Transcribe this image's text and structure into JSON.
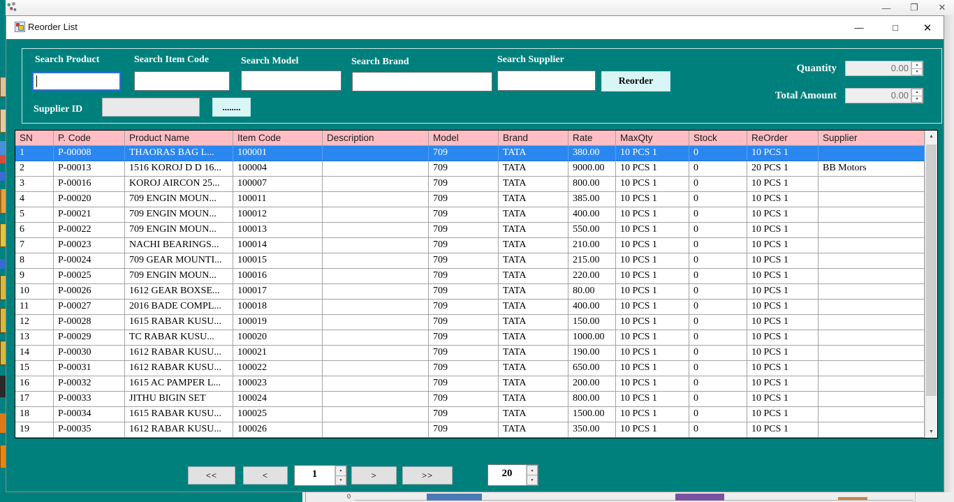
{
  "colors": {
    "background_teal": "#00807d",
    "grid_header_pink": "#ffbec4",
    "selection_blue": "#2b87f0",
    "accent_cyan": "#d9f6f6"
  },
  "icons": {
    "outer_minimize": "—",
    "outer_restore": "❐",
    "outer_close": "✕",
    "window_minimize": "—",
    "window_maximize": "□",
    "window_close": "✕",
    "spin_up": "▲",
    "spin_down": "▼",
    "scroll_up": "▲",
    "scroll_down": "▼"
  },
  "window": {
    "title": "Reorder List"
  },
  "search_panel": {
    "product_label": "Search Product",
    "product_value": "",
    "item_code_label": "Search Item Code",
    "item_code_value": "",
    "model_label": "Search Model",
    "model_value": "",
    "brand_label": "Search Brand",
    "brand_value": "",
    "supplier_label": "Search Supplier",
    "supplier_value": "",
    "reorder_button": "Reorder",
    "supplier_id_label": "Supplier ID",
    "supplier_id_value": "",
    "browse_button": "........",
    "quantity_label": "Quantity",
    "quantity_value": "0.00",
    "total_amount_label": "Total Amount",
    "total_amount_value": "0.00"
  },
  "table": {
    "columns": [
      "SN",
      "P. Code",
      "Product Name",
      "Item Code",
      "Description",
      "Model",
      "Brand",
      "Rate",
      "MaxQty",
      "Stock",
      "ReOrder",
      "Supplier"
    ],
    "selected_row_index": 0,
    "rows": [
      [
        "1",
        "P-00008",
        "THAORAS BAG L...",
        "100001",
        "",
        "709",
        "TATA",
        "380.00",
        "10 PCS 1",
        "0",
        "10 PCS 1",
        ""
      ],
      [
        "2",
        "P-00013",
        "1516 KOROJ D D 16...",
        "100004",
        "",
        "709",
        "TATA",
        "9000.00",
        "10 PCS 1",
        "0",
        "20 PCS 1",
        "BB Motors"
      ],
      [
        "3",
        "P-00016",
        "KOROJ AIRCON 25...",
        "100007",
        "",
        "709",
        "TATA",
        "800.00",
        "10 PCS 1",
        "0",
        "10 PCS 1",
        ""
      ],
      [
        "4",
        "P-00020",
        "709 ENGIN MOUN...",
        "100011",
        "",
        "709",
        "TATA",
        "385.00",
        "10 PCS 1",
        "0",
        "10 PCS 1",
        ""
      ],
      [
        "5",
        "P-00021",
        "709 ENGIN MOUN...",
        "100012",
        "",
        "709",
        "TATA",
        "400.00",
        "10 PCS 1",
        "0",
        "10 PCS 1",
        ""
      ],
      [
        "6",
        "P-00022",
        "709 ENGIN MOUN...",
        "100013",
        "",
        "709",
        "TATA",
        "550.00",
        "10 PCS 1",
        "0",
        "10 PCS 1",
        ""
      ],
      [
        "7",
        "P-00023",
        "NACHI BEARINGS...",
        "100014",
        "",
        "709",
        "TATA",
        "210.00",
        "10 PCS 1",
        "0",
        "10 PCS 1",
        ""
      ],
      [
        "8",
        "P-00024",
        "709 GEAR MOUNTI...",
        "100015",
        "",
        "709",
        "TATA",
        "215.00",
        "10 PCS 1",
        "0",
        "10 PCS 1",
        ""
      ],
      [
        "9",
        "P-00025",
        "709 ENGIN MOUN...",
        "100016",
        "",
        "709",
        "TATA",
        "220.00",
        "10 PCS 1",
        "0",
        "10 PCS 1",
        ""
      ],
      [
        "10",
        "P-00026",
        "1612 GEAR BOXSE...",
        "100017",
        "",
        "709",
        "TATA",
        "80.00",
        "10 PCS 1",
        "0",
        "10 PCS 1",
        ""
      ],
      [
        "11",
        "P-00027",
        "2016 BADE COMPL...",
        "100018",
        "",
        "709",
        "TATA",
        "400.00",
        "10 PCS 1",
        "0",
        "10 PCS 1",
        ""
      ],
      [
        "12",
        "P-00028",
        "1615 RABAR KUSU...",
        "100019",
        "",
        "709",
        "TATA",
        "150.00",
        "10 PCS 1",
        "0",
        "10 PCS 1",
        ""
      ],
      [
        "13",
        "P-00029",
        "TC RABAR KUSU...",
        "100020",
        "",
        "709",
        "TATA",
        "1000.00",
        "10 PCS 1",
        "0",
        "10 PCS 1",
        ""
      ],
      [
        "14",
        "P-00030",
        "1612 RABAR KUSU...",
        "100021",
        "",
        "709",
        "TATA",
        "190.00",
        "10 PCS 1",
        "0",
        "10 PCS 1",
        ""
      ],
      [
        "15",
        "P-00031",
        "1612 RABAR KUSU...",
        "100022",
        "",
        "709",
        "TATA",
        "650.00",
        "10 PCS 1",
        "0",
        "10 PCS 1",
        ""
      ],
      [
        "16",
        "P-00032",
        "1615 AC PAMPER L...",
        "100023",
        "",
        "709",
        "TATA",
        "200.00",
        "10 PCS 1",
        "0",
        "10 PCS 1",
        ""
      ],
      [
        "17",
        "P-00033",
        "JITHU BIGIN SET",
        "100024",
        "",
        "709",
        "TATA",
        "800.00",
        "10 PCS 1",
        "0",
        "10 PCS 1",
        ""
      ],
      [
        "18",
        "P-00034",
        "1615 RABAR KUSU...",
        "100025",
        "",
        "709",
        "TATA",
        "1500.00",
        "10 PCS 1",
        "0",
        "10 PCS 1",
        ""
      ],
      [
        "19",
        "P-00035",
        "1612 RABAR KUSU...",
        "100026",
        "",
        "709",
        "TATA",
        "350.00",
        "10 PCS 1",
        "0",
        "10 PCS 1",
        ""
      ]
    ]
  },
  "pagination": {
    "first_label": "<<",
    "prev_label": "<",
    "page_value": "1",
    "next_label": ">",
    "last_label": ">>",
    "page_size_value": "20"
  },
  "background_window": {
    "chart_axis_label": "0"
  }
}
